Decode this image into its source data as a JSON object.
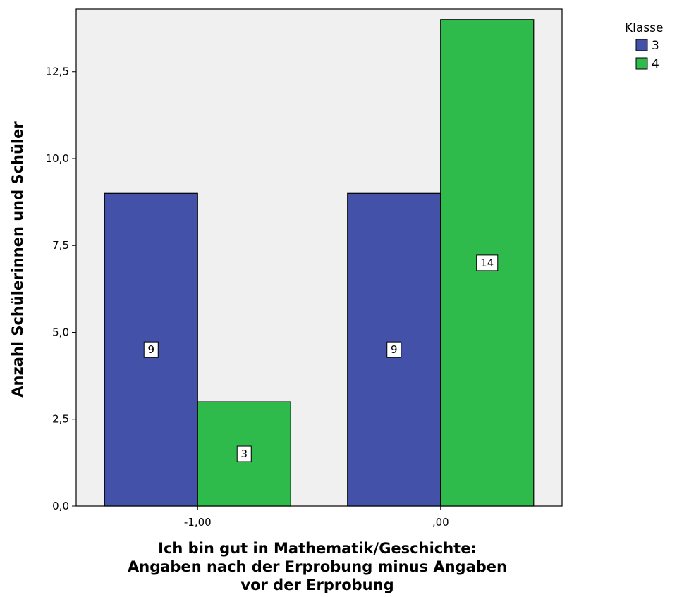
{
  "chart_data": {
    "type": "bar",
    "categories": [
      "-1,00",
      ",00"
    ],
    "series": [
      {
        "name": "3",
        "color": "#4352a8",
        "values": [
          9,
          9
        ]
      },
      {
        "name": "4",
        "color": "#2fba4c",
        "values": [
          3,
          14
        ]
      }
    ],
    "data_labels": [
      [
        "9",
        "9"
      ],
      [
        "3",
        "14"
      ]
    ],
    "ylabel": "Anzahl Schülerinnen und Schüler",
    "xlabel_lines": [
      "Ich bin gut in Mathematik/Geschichte:",
      "Angaben nach der Erprobung minus Angaben",
      "vor der Erprobung"
    ],
    "ylim": [
      0,
      14.3
    ],
    "yticks": [
      {
        "value": 0,
        "label": "0,0"
      },
      {
        "value": 2.5,
        "label": "2,5"
      },
      {
        "value": 5,
        "label": "5,0"
      },
      {
        "value": 7.5,
        "label": "7,5"
      },
      {
        "value": 10,
        "label": "10,0"
      },
      {
        "value": 12.5,
        "label": "12,5"
      }
    ],
    "grid": false,
    "legend": {
      "title": "Klasse",
      "placement": "top-right"
    },
    "plot_background": "#f0f0f0",
    "bar_outline": "#000000"
  }
}
